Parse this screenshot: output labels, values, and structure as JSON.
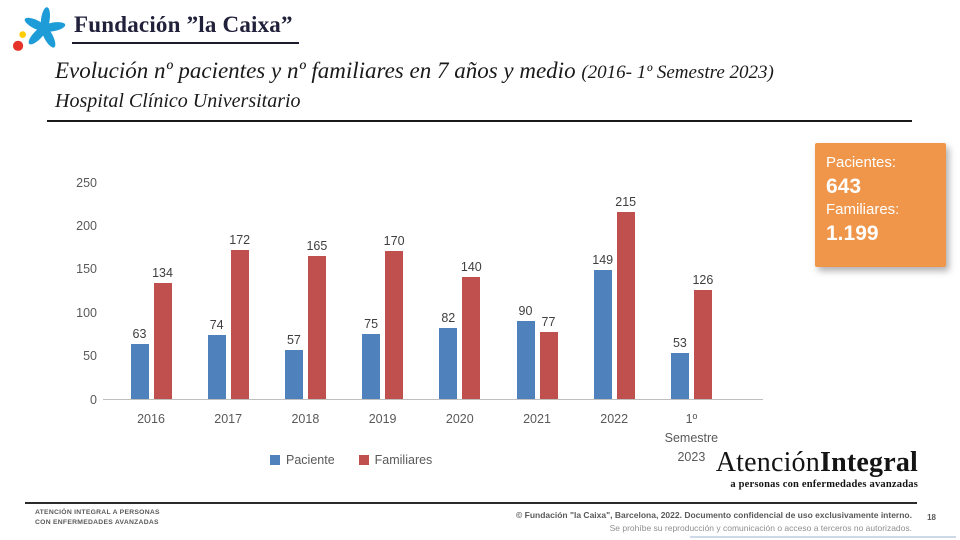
{
  "header": {
    "logo_text": "Fundación ”la Caixa”"
  },
  "title": {
    "main": "Evolución nº pacientes y nº familiares en 7 años y medio ",
    "paren": "(2016- 1º Semestre 2023)",
    "subtitle": "Hospital Clínico Universitario"
  },
  "stat_box": {
    "pacientes_label": "Pacientes:",
    "pacientes_value": "643",
    "familiares_label": "Familiares:",
    "familiares_value": "1.199",
    "background": "#F0964B"
  },
  "chart_data": {
    "type": "bar",
    "title": "",
    "categories": [
      "2016",
      "2017",
      "2018",
      "2019",
      "2020",
      "2021",
      "2022",
      "1º Semestre 2023"
    ],
    "series": [
      {
        "name": "Paciente",
        "color": "#4F81BD",
        "values": [
          63,
          74,
          57,
          75,
          82,
          90,
          149,
          53
        ]
      },
      {
        "name": "Familiares",
        "color": "#C0504D",
        "values": [
          134,
          172,
          165,
          170,
          140,
          77,
          215,
          126
        ]
      }
    ],
    "ylim": [
      0,
      250
    ],
    "yticks": [
      0,
      50,
      100,
      150,
      200,
      250
    ],
    "grid": false,
    "legend_position": "bottom",
    "axis_color": "#BFBFBF",
    "totals": {
      "pacientes": 643,
      "familiares": 1199
    }
  },
  "brand": {
    "wordmark_regular": "Atención",
    "wordmark_bold": "Integral",
    "tagline": "a personas con enfermedades avanzadas"
  },
  "footer": {
    "left_line1": "ATENCIÓN INTEGRAL A PERSONAS",
    "left_line2": "CON ENFERMEDADES AVANZADAS",
    "copyright_line1": "© Fundación \"la Caixa\", Barcelona, 2022. Documento confidencial de uso exclusivamente interno.",
    "copyright_line2": "Se prohíbe su reproducción y comunicación o acceso a terceros no autorizados.",
    "page_number": "18"
  },
  "logo_colors": {
    "star_blue": "#1E9CD7",
    "dot_red": "#E63329",
    "dot_yellow": "#FFCC00"
  }
}
